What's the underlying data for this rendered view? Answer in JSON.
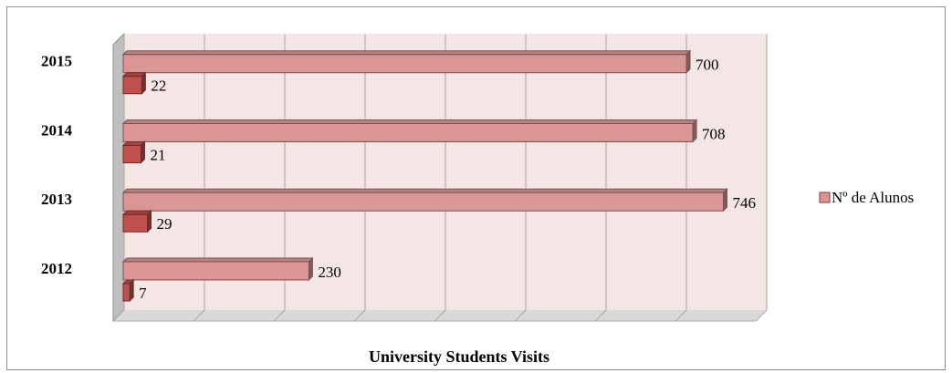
{
  "chart_data": {
    "type": "bar",
    "orientation": "horizontal",
    "style": "3d",
    "title": "University Students Visits",
    "categories": [
      "2012",
      "2013",
      "2014",
      "2015"
    ],
    "series": [
      {
        "name": "Nº de Alunos",
        "values": [
          230,
          746,
          708,
          700
        ],
        "color": "#d99694"
      },
      {
        "values": [
          7,
          29,
          21,
          22
        ],
        "color": "#c0504d"
      }
    ],
    "xlim": [
      0,
      800
    ],
    "grid": true,
    "legend_position": "right",
    "wall_color": "#f5e6e6",
    "axis_color": "#a6a6a6"
  }
}
